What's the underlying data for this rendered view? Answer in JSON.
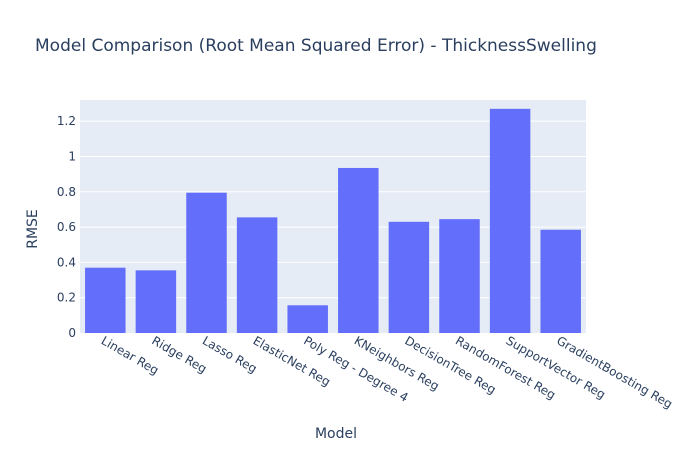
{
  "chart_data": {
    "type": "bar",
    "title": "Model Comparison (Root Mean Squared Error) - ThicknessSwelling",
    "xlabel": "Model",
    "ylabel": "RMSE",
    "categories": [
      "Linear Reg",
      "Ridge Reg",
      "Lasso Reg",
      "ElasticNet Reg",
      "Poly Reg - Degree 4",
      "KNeighbors Reg",
      "DecisionTree Reg",
      "RandomForest Reg",
      "SupportVector Reg",
      "GradientBoosting Reg"
    ],
    "values": [
      0.37,
      0.355,
      0.795,
      0.655,
      0.157,
      0.935,
      0.63,
      0.645,
      1.27,
      0.585
    ],
    "ylim": [
      0,
      1.32
    ],
    "yticks": [
      "0",
      "0.2",
      "0.4",
      "0.6",
      "0.8",
      "1",
      "1.2"
    ],
    "grid": true,
    "colors": {
      "bar": "#636efa",
      "plot_bg": "#e5ecf6",
      "grid": "#ffffff",
      "text": "#2a3f5f"
    }
  }
}
